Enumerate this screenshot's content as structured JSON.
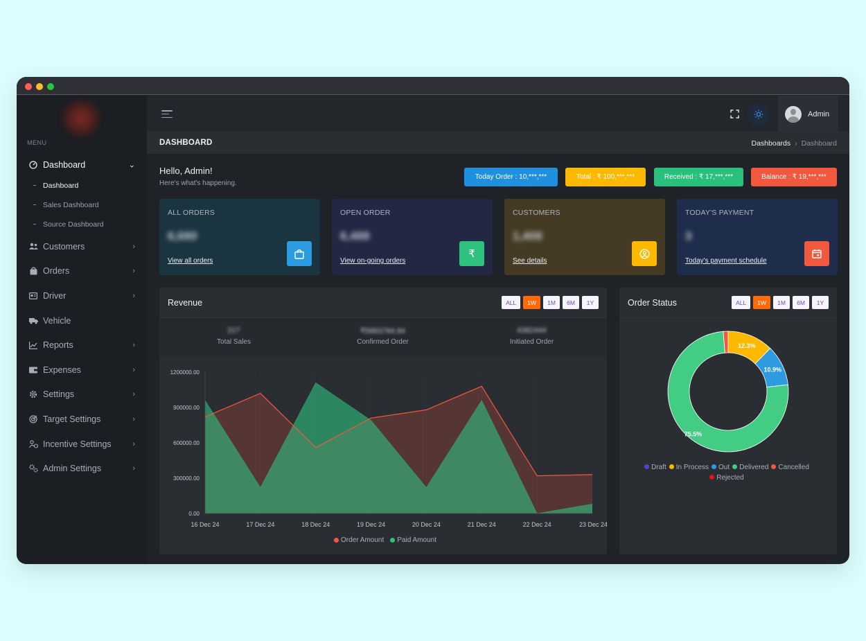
{
  "window": {
    "controls": [
      {
        "name": "close",
        "color": "#ff5f57"
      },
      {
        "name": "minimize",
        "color": "#febc2e"
      },
      {
        "name": "maximize",
        "color": "#28c840"
      }
    ]
  },
  "sidebar": {
    "menu_title": "MENU",
    "items": [
      {
        "label": "Dashboard",
        "icon": "gauge-icon",
        "expanded": true,
        "subitems": [
          {
            "label": "Dashboard",
            "active": true
          },
          {
            "label": "Sales Dashboard",
            "active": false
          },
          {
            "label": "Source Dashboard",
            "active": false
          }
        ]
      },
      {
        "label": "Customers",
        "icon": "users-icon",
        "chevron": true
      },
      {
        "label": "Orders",
        "icon": "shopping-bag-icon",
        "chevron": true
      },
      {
        "label": "Driver",
        "icon": "id-card-icon",
        "chevron": true
      },
      {
        "label": "Vehicle",
        "icon": "truck-icon",
        "chevron": false
      },
      {
        "label": "Reports",
        "icon": "chart-icon",
        "chevron": true
      },
      {
        "label": "Expenses",
        "icon": "wallet-icon",
        "chevron": true
      },
      {
        "label": "Settings",
        "icon": "gear-icon",
        "chevron": true
      },
      {
        "label": "Target Settings",
        "icon": "target-icon",
        "chevron": true
      },
      {
        "label": "Incentive Settings",
        "icon": "user-coin-icon",
        "chevron": true
      },
      {
        "label": "Admin Settings",
        "icon": "admin-gear-icon",
        "chevron": true
      }
    ]
  },
  "topbar": {
    "user_name": "Admin",
    "icons": [
      "menu-icon",
      "fullscreen-icon",
      "sun-icon",
      "avatar"
    ]
  },
  "page": {
    "title": "DASHBOARD",
    "breadcrumb_parent": "Dashboards",
    "breadcrumb_current": "Dashboard"
  },
  "greeting": {
    "title": "Hello, Admin!",
    "subtitle": "Here's what's happening."
  },
  "summary_pills": [
    {
      "label": "Today Order :  10,***,***",
      "color": "#1f8fe0"
    },
    {
      "label": "Total :  ₹  100,***,***",
      "color": "#fcb900"
    },
    {
      "label": "Received : ₹  17,***,***",
      "color": "#27c07c"
    },
    {
      "label": "Balance :  ₹  19,***,***",
      "color": "#f2583e"
    }
  ],
  "cards": [
    {
      "label": "ALL ORDERS",
      "value": "6,680",
      "link": "View all orders",
      "icon": "shopping-bag-icon",
      "bg": "#1b3540",
      "icon_bg": "#2d9be0"
    },
    {
      "label": "OPEN ORDER",
      "value": "6,488",
      "link": "View on-going orders",
      "icon": "rupee-icon",
      "bg": "#222744",
      "icon_bg": "#2ec27e"
    },
    {
      "label": "CUSTOMERS",
      "value": "1,408",
      "link": "See details",
      "icon": "user-circle-icon",
      "bg": "#453b24",
      "icon_bg": "#fcb900"
    },
    {
      "label": "TODAY'S PAYMENT",
      "value": "3",
      "link": "Today's payment schedule",
      "icon": "calendar-icon",
      "bg": "#1e2d4b",
      "icon_bg": "#f2583e"
    }
  ],
  "revenue": {
    "title": "Revenue",
    "ranges": [
      {
        "label": "ALL",
        "active": false
      },
      {
        "label": "1W",
        "active": true
      },
      {
        "label": "1M",
        "active": false
      },
      {
        "label": "6M",
        "active": false
      },
      {
        "label": "1Y",
        "active": false
      }
    ],
    "stats": [
      {
        "value": "217",
        "label": "Total Sales"
      },
      {
        "value": "₹5883784.84",
        "label": "Confirmed Order"
      },
      {
        "value": "4382444",
        "label": "Initiated Order"
      }
    ]
  },
  "order_status": {
    "title": "Order Status",
    "ranges": [
      {
        "label": "ALL",
        "active": false
      },
      {
        "label": "1W",
        "active": true
      },
      {
        "label": "1M",
        "active": false
      },
      {
        "label": "6M",
        "active": false
      },
      {
        "label": "1Y",
        "active": false
      }
    ]
  },
  "chart_data": [
    {
      "type": "area",
      "x": [
        "16 Dec 24",
        "17 Dec 24",
        "18 Dec 24",
        "19 Dec 24",
        "20 Dec 24",
        "21 Dec 24",
        "22 Dec 24",
        "23 Dec 24"
      ],
      "ylim": [
        0,
        1200000
      ],
      "yticks": [
        "0.00",
        "300000.00",
        "600000.00",
        "900000.00",
        "1200000.00"
      ],
      "series": [
        {
          "name": "Order Amount",
          "color": "#f2583e",
          "values": [
            820000,
            1020000,
            560000,
            810000,
            880000,
            1080000,
            320000,
            330000
          ]
        },
        {
          "name": "Paid Amount",
          "color": "#2ec27e",
          "values": [
            960000,
            220000,
            1110000,
            790000,
            220000,
            960000,
            0,
            80000
          ]
        }
      ],
      "legend": "bottom-center",
      "grid": false
    },
    {
      "type": "pie",
      "variant": "donut",
      "categories": [
        "Draft",
        "In Process",
        "Out",
        "Delivered",
        "Cancelled",
        "Rejected"
      ],
      "values": [
        0,
        12.3,
        10.9,
        75.5,
        1.3,
        0
      ],
      "labels": [
        "",
        "12.3%",
        "10.9%",
        "75.5%",
        "",
        ""
      ],
      "colors": [
        "#5a3fd0",
        "#fcb900",
        "#2d9be0",
        "#43cc84",
        "#f2583e",
        "#e8141a"
      ],
      "legend": "bottom-center"
    }
  ]
}
